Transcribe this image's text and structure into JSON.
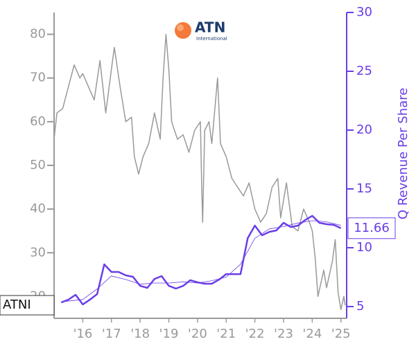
{
  "chart_data": {
    "type": "line",
    "logo": {
      "name": "ATN",
      "subtitle": "International"
    },
    "ticker": "ATNI",
    "y2label": "Q Revenue Per Share",
    "xlim": [
      2015,
      2025.2
    ],
    "xticks": [
      {
        "value": 2016,
        "label": "'16"
      },
      {
        "value": 2017,
        "label": "'17"
      },
      {
        "value": 2018,
        "label": "'18"
      },
      {
        "value": 2019,
        "label": "'19"
      },
      {
        "value": 2020,
        "label": "'20"
      },
      {
        "value": 2021,
        "label": "'21"
      },
      {
        "value": 2022,
        "label": "'22"
      },
      {
        "value": 2023,
        "label": "'23"
      },
      {
        "value": 2024,
        "label": "'24"
      },
      {
        "value": 2025,
        "label": "'25"
      }
    ],
    "ylim": [
      15,
      85
    ],
    "yticks": [
      20,
      30,
      40,
      50,
      60,
      70,
      80
    ],
    "y2lim": [
      4,
      30
    ],
    "y2ticks": [
      5,
      10,
      15,
      20,
      25,
      30
    ],
    "series": [
      {
        "color": "#999999",
        "axis": "y",
        "x": [
          2015.0,
          2015.1,
          2015.3,
          2015.5,
          2015.7,
          2015.9,
          2016.0,
          2016.2,
          2016.4,
          2016.6,
          2016.8,
          2017.0,
          2017.1,
          2017.3,
          2017.5,
          2017.7,
          2017.8,
          2017.95,
          2018.1,
          2018.3,
          2018.5,
          2018.7,
          2018.8,
          2018.9,
          2019.0,
          2019.1,
          2019.3,
          2019.5,
          2019.7,
          2019.9,
          2020.1,
          2020.15,
          2020.18,
          2020.25,
          2020.4,
          2020.5,
          2020.7,
          2020.8,
          2021.0,
          2021.2,
          2021.4,
          2021.6,
          2021.8,
          2022.0,
          2022.2,
          2022.4,
          2022.6,
          2022.8,
          2022.9,
          2023.1,
          2023.3,
          2023.5,
          2023.7,
          2023.9,
          2024.0,
          2024.1,
          2024.2,
          2024.4,
          2024.5,
          2024.7,
          2024.8,
          2024.9,
          2025.0,
          2025.1,
          2025.15
        ],
        "values": [
          56,
          62,
          63,
          68,
          73,
          70,
          71,
          68,
          65,
          74,
          62,
          72,
          77,
          68,
          60,
          61,
          52,
          48,
          52,
          55,
          62,
          56,
          70,
          80,
          72,
          60,
          56,
          57,
          53,
          58,
          60,
          44,
          37,
          58,
          60,
          55,
          70,
          55,
          52,
          47,
          45,
          43,
          46,
          40,
          37,
          39,
          45,
          47,
          38,
          46,
          36,
          35,
          40,
          37,
          35,
          29,
          20,
          26,
          22,
          28,
          33,
          21,
          17,
          20,
          18
        ]
      },
      {
        "color": "#6a3de8",
        "axis": "y2",
        "x": [
          2015.25,
          2015.5,
          2015.75,
          2016.0,
          2016.25,
          2016.5,
          2016.75,
          2017.0,
          2017.25,
          2017.5,
          2017.75,
          2018.0,
          2018.25,
          2018.5,
          2018.75,
          2019.0,
          2019.25,
          2019.5,
          2019.75,
          2020.0,
          2020.25,
          2020.5,
          2020.75,
          2021.0,
          2021.25,
          2021.5,
          2021.75,
          2022.0,
          2022.25,
          2022.5,
          2022.75,
          2023.0,
          2023.25,
          2023.5,
          2023.75,
          2024.0,
          2024.25,
          2024.5,
          2024.75,
          2025.0
        ],
        "values": [
          5.35,
          5.59,
          6.0,
          5.18,
          5.59,
          6.06,
          8.59,
          7.94,
          7.94,
          7.65,
          7.53,
          6.76,
          6.59,
          7.35,
          7.59,
          6.76,
          6.53,
          6.76,
          7.24,
          7.06,
          6.94,
          6.94,
          7.29,
          7.76,
          7.76,
          7.76,
          10.82,
          11.88,
          11.06,
          11.35,
          11.47,
          12.12,
          11.76,
          11.88,
          12.35,
          12.71,
          12.12,
          12.0,
          11.94,
          11.66
        ]
      },
      {
        "color": "#6a3de8",
        "axis": "y2",
        "x": [
          2015.25,
          2016.0,
          2016.5,
          2017.0,
          2017.5,
          2018.0,
          2018.5,
          2019.0,
          2019.5,
          2020.0,
          2020.5,
          2021.0,
          2021.5,
          2022.0,
          2022.5,
          2023.0,
          2023.5,
          2024.0,
          2024.5,
          2025.0
        ],
        "values": [
          5.4,
          5.6,
          6.5,
          7.6,
          7.3,
          6.9,
          7.0,
          7.0,
          7.1,
          7.0,
          7.2,
          7.5,
          8.6,
          10.8,
          11.6,
          11.8,
          12.1,
          12.3,
          12.2,
          11.9
        ]
      }
    ]
  }
}
